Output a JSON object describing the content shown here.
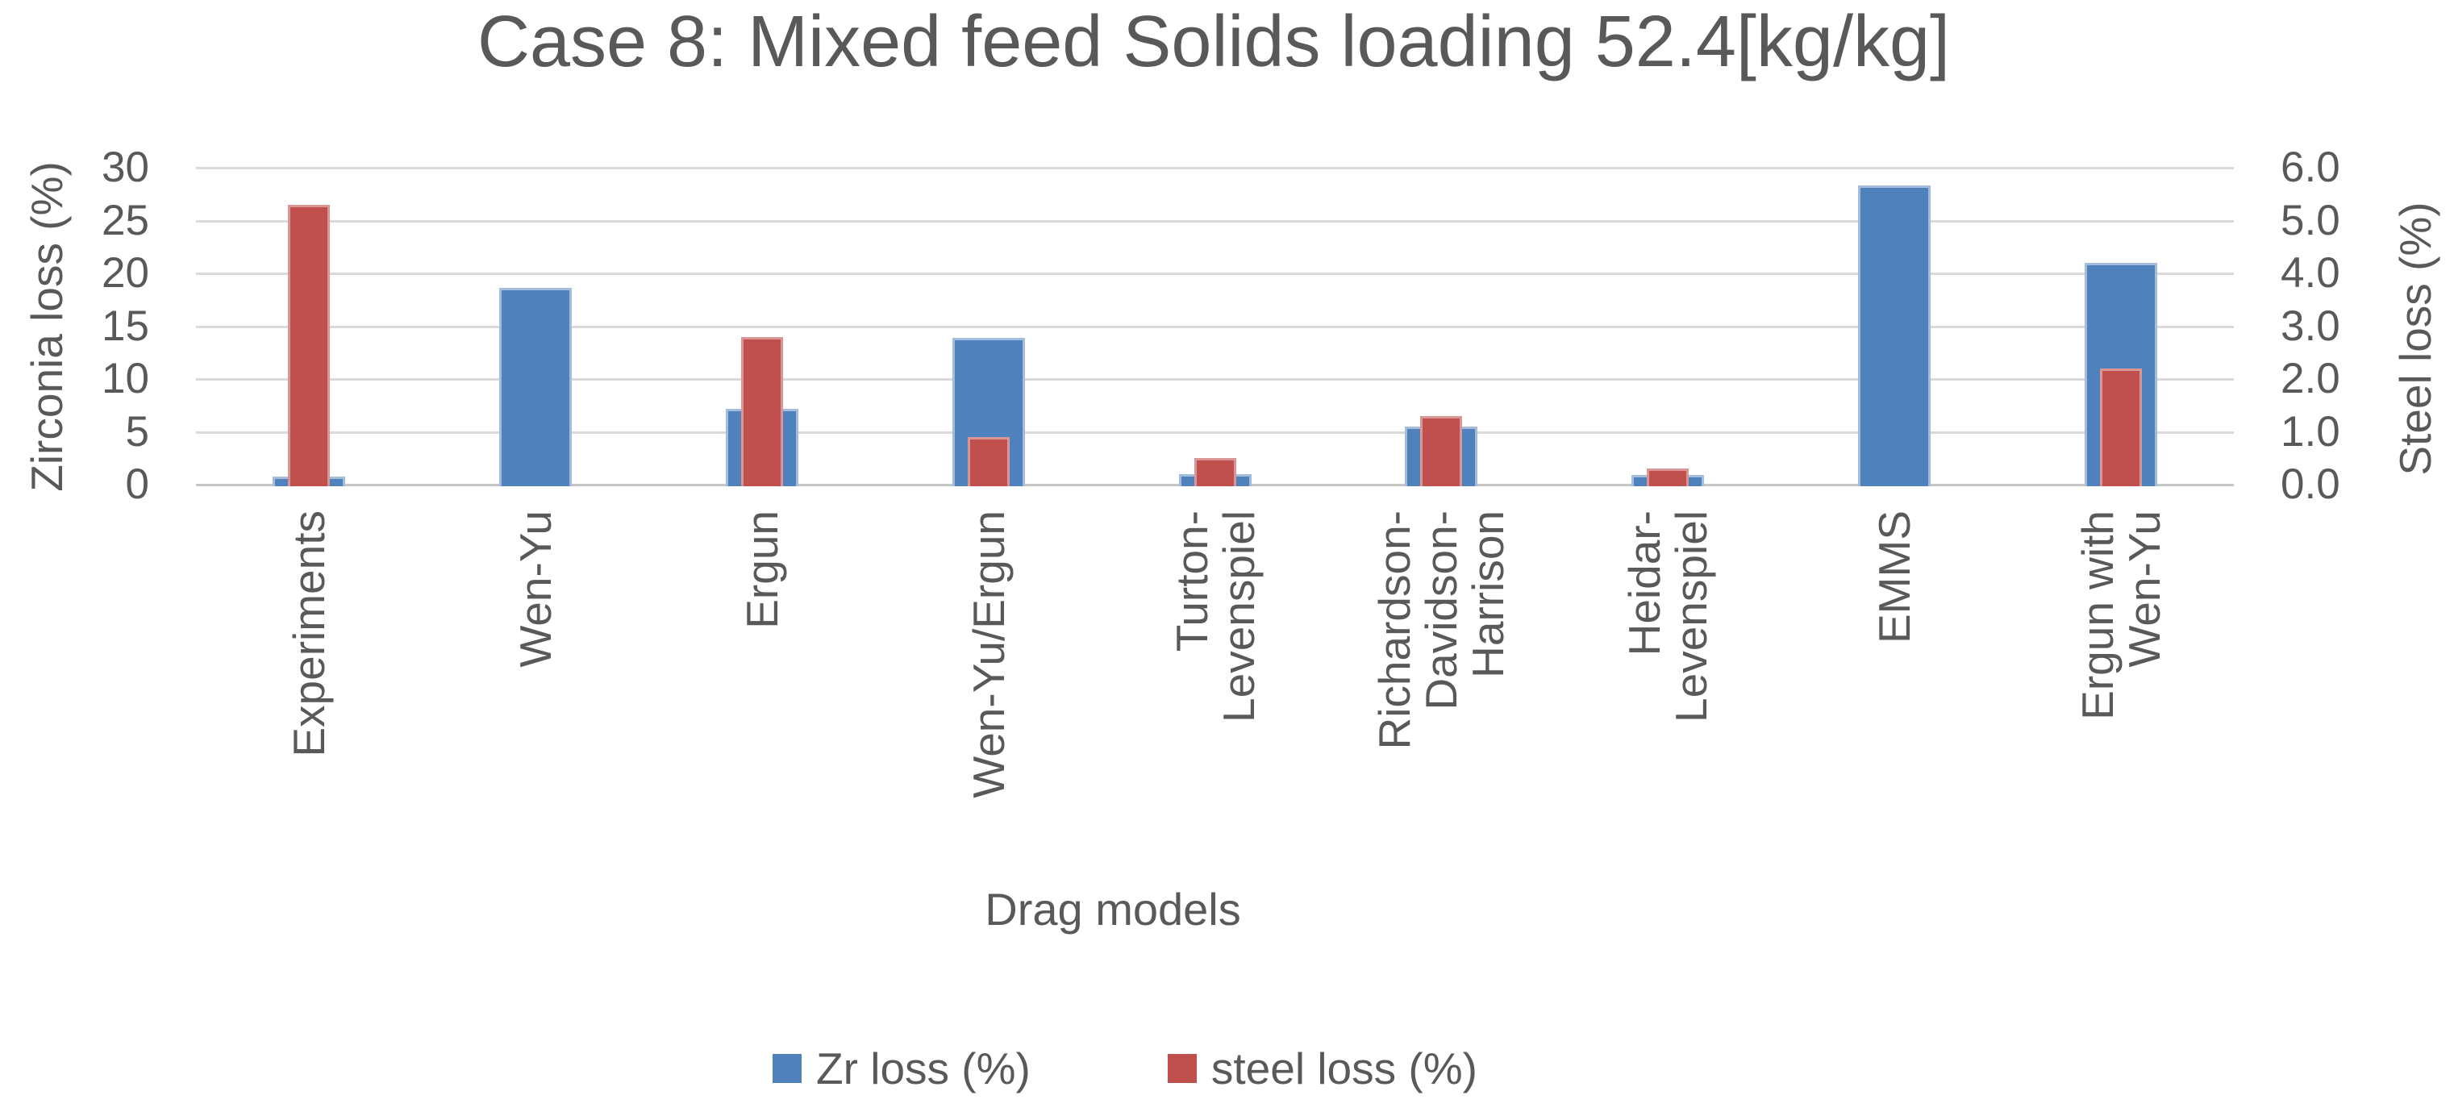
{
  "title": "Case 8: Mixed feed Solids loading 52.4[kg/kg]",
  "axes": {
    "left": {
      "label": "Zirconia loss (%)",
      "ticks": [
        "30",
        "25",
        "20",
        "15",
        "10",
        "5",
        "0"
      ]
    },
    "right": {
      "label": "Steel loss (%)",
      "ticks": [
        "6.0",
        "5.0",
        "4.0",
        "3.0",
        "2.0",
        "1.0",
        "0.0"
      ]
    },
    "x": {
      "label": "Drag models"
    }
  },
  "legend": {
    "items": [
      {
        "label": "Zr loss (%)",
        "color": "#4F81BD"
      },
      {
        "label": "steel loss (%)",
        "color": "#C0504D"
      }
    ]
  },
  "chart_data": {
    "type": "bar",
    "title": "Case 8: Mixed feed Solids loading 52.4[kg/kg]",
    "xlabel": "Drag models",
    "ylabel_left": "Zirconia loss (%)",
    "ylabel_right": "Steel loss (%)",
    "ylim_left": [
      0,
      30
    ],
    "ylim_right": [
      0,
      6.0
    ],
    "grid": true,
    "legend_position": "bottom",
    "bar_style": "overlapped (blue wide on primary axis, red narrow on secondary axis)",
    "categories": [
      "Experiments",
      "Wen-Yu",
      "Ergun",
      "Wen-Yu/Ergun",
      "Turton-Levenspiel",
      "Richardson-Davidson-Harrison",
      "Heidar-Levenspiel",
      "EMMS",
      "Ergun with Wen-Yu"
    ],
    "category_display_lines": [
      [
        "Experiments"
      ],
      [
        "Wen-Yu"
      ],
      [
        "Ergun"
      ],
      [
        "Wen-Yu/Ergun"
      ],
      [
        "Turton-",
        "Levenspiel"
      ],
      [
        "Richardson-",
        "Davidson-",
        "Harrison"
      ],
      [
        "Heidar-",
        "Levenspiel"
      ],
      [
        "EMMS"
      ],
      [
        "Ergun with",
        "Wen-Yu"
      ]
    ],
    "series": [
      {
        "name": "Zr loss (%)",
        "axis": "left",
        "color": "#4F81BD",
        "border_color": "#A3BCDC",
        "values": [
          0.8,
          18.6,
          7.2,
          13.9,
          1.0,
          5.5,
          0.9,
          28.3,
          21.0
        ]
      },
      {
        "name": "steel loss (%)",
        "axis": "right",
        "color": "#C0504D",
        "border_color": "#D99694",
        "values": [
          5.3,
          0,
          2.8,
          0.9,
          0.5,
          1.3,
          0.3,
          0,
          2.2
        ]
      }
    ]
  },
  "colors": {
    "text": "#595959",
    "gridline": "#d9d9d9",
    "axis_line": "#c6c6c6",
    "series_blue": "#4F81BD",
    "series_red": "#C0504D"
  }
}
